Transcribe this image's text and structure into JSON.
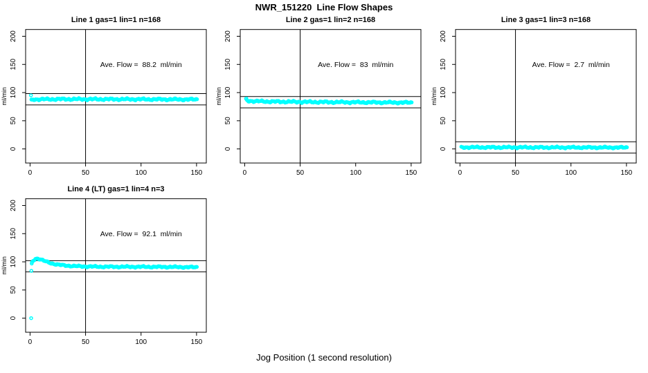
{
  "page": {
    "title": "NWR_151220  Line Flow Shapes",
    "xlabel": "Jog Position (1 second resolution)"
  },
  "style": {
    "point_color": "#00FFFF",
    "axis_color": "#000000",
    "background": "#FFFFFF",
    "text_color": "#000000"
  },
  "chart_data": [
    {
      "id": "line1",
      "type": "scatter",
      "title": "Line 1 gas=1 lin=1 n=168",
      "annotation": "Ave. Flow =  88.2  ml/min",
      "ave_flow_ml_min": 88.2,
      "n": 168,
      "ylabel": "ml/min",
      "xticks": [
        0,
        50,
        100,
        150
      ],
      "yticks": [
        0,
        50,
        100,
        150,
        200
      ],
      "xlim": [
        -4,
        158.8
      ],
      "ylim": [
        -25,
        212
      ],
      "vline_x": 50,
      "hlines": [
        98.2,
        78.2
      ],
      "annotation_pos": [
        100,
        150
      ],
      "grid": false,
      "series": {
        "x_start": 1.2,
        "x_end": 151,
        "step": 0.75,
        "jitter_amp": 1.0,
        "profile": [
          [
            1.5,
            86.5
          ],
          [
            3,
            88
          ],
          [
            30,
            88.4
          ],
          [
            90,
            88.2
          ],
          [
            151,
            87.8
          ]
        ],
        "extra_points": [
          [
            0.8,
            95
          ]
        ]
      }
    },
    {
      "id": "line2",
      "type": "scatter",
      "title": "Line 2 gas=1 lin=2 n=168",
      "annotation": "Ave. Flow =  83  ml/min",
      "ave_flow_ml_min": 83,
      "n": 168,
      "ylabel": "ml/min",
      "xticks": [
        0,
        50,
        100,
        150
      ],
      "yticks": [
        0,
        50,
        100,
        150,
        200
      ],
      "xlim": [
        -4,
        158.8
      ],
      "ylim": [
        -25,
        212
      ],
      "vline_x": 50,
      "hlines": [
        93,
        73
      ],
      "annotation_pos": [
        100,
        150
      ],
      "grid": false,
      "series": {
        "x_start": 1.2,
        "x_end": 151,
        "step": 0.75,
        "jitter_amp": 1.0,
        "profile": [
          [
            1.2,
            88
          ],
          [
            2.5,
            85.5
          ],
          [
            8,
            84.8
          ],
          [
            25,
            84
          ],
          [
            60,
            83.3
          ],
          [
            100,
            82.8
          ],
          [
            151,
            82.2
          ]
        ],
        "extra_points": [
          [
            1.5,
            89.5
          ]
        ]
      }
    },
    {
      "id": "line3",
      "type": "scatter",
      "title": "Line 3 gas=1 lin=3 n=168",
      "annotation": "Ave. Flow =  2.7  ml/min",
      "ave_flow_ml_min": 2.7,
      "n": 168,
      "ylabel": "ml/min",
      "xticks": [
        0,
        50,
        100,
        150
      ],
      "yticks": [
        0,
        50,
        100,
        150,
        200
      ],
      "xlim": [
        -4,
        158.8
      ],
      "ylim": [
        -25,
        212
      ],
      "vline_x": 50,
      "hlines": [
        12.7,
        -7.3
      ],
      "annotation_pos": [
        100,
        150
      ],
      "grid": false,
      "series": {
        "x_start": 1.2,
        "x_end": 151,
        "step": 0.75,
        "jitter_amp": 0.9,
        "profile": [
          [
            1.2,
            2.9
          ],
          [
            75,
            2.7
          ],
          [
            151,
            2.5
          ]
        ],
        "extra_points": []
      }
    },
    {
      "id": "line4",
      "type": "scatter",
      "title": "Line 4 (LT) gas=1 lin=4 n=3",
      "annotation": "Ave. Flow =  92.1  ml/min",
      "ave_flow_ml_min": 92.1,
      "n": 3,
      "ylabel": "ml/min",
      "xticks": [
        0,
        50,
        100,
        150
      ],
      "yticks": [
        0,
        50,
        100,
        150,
        200
      ],
      "xlim": [
        -4,
        158.8
      ],
      "ylim": [
        -25,
        212
      ],
      "vline_x": 50,
      "hlines": [
        102.1,
        82.1
      ],
      "annotation_pos": [
        100,
        150
      ],
      "grid": false,
      "series": {
        "x_start": 1.8,
        "x_end": 151,
        "step": 0.75,
        "jitter_amp": 0.8,
        "profile": [
          [
            1.8,
            99
          ],
          [
            3,
            102.5
          ],
          [
            4.5,
            105
          ],
          [
            6,
            106
          ],
          [
            8,
            105.5
          ],
          [
            10,
            103.8
          ],
          [
            13,
            101.5
          ],
          [
            16,
            99.3
          ],
          [
            20,
            97
          ],
          [
            25,
            95
          ],
          [
            31,
            93.6
          ],
          [
            38,
            92.6
          ],
          [
            48,
            91.8
          ],
          [
            65,
            91.3
          ],
          [
            90,
            91.2
          ],
          [
            120,
            91
          ],
          [
            151,
            90.4
          ]
        ],
        "extra_points": [
          [
            1,
            0
          ],
          [
            1.2,
            84
          ],
          [
            1.5,
            97
          ]
        ]
      }
    }
  ]
}
